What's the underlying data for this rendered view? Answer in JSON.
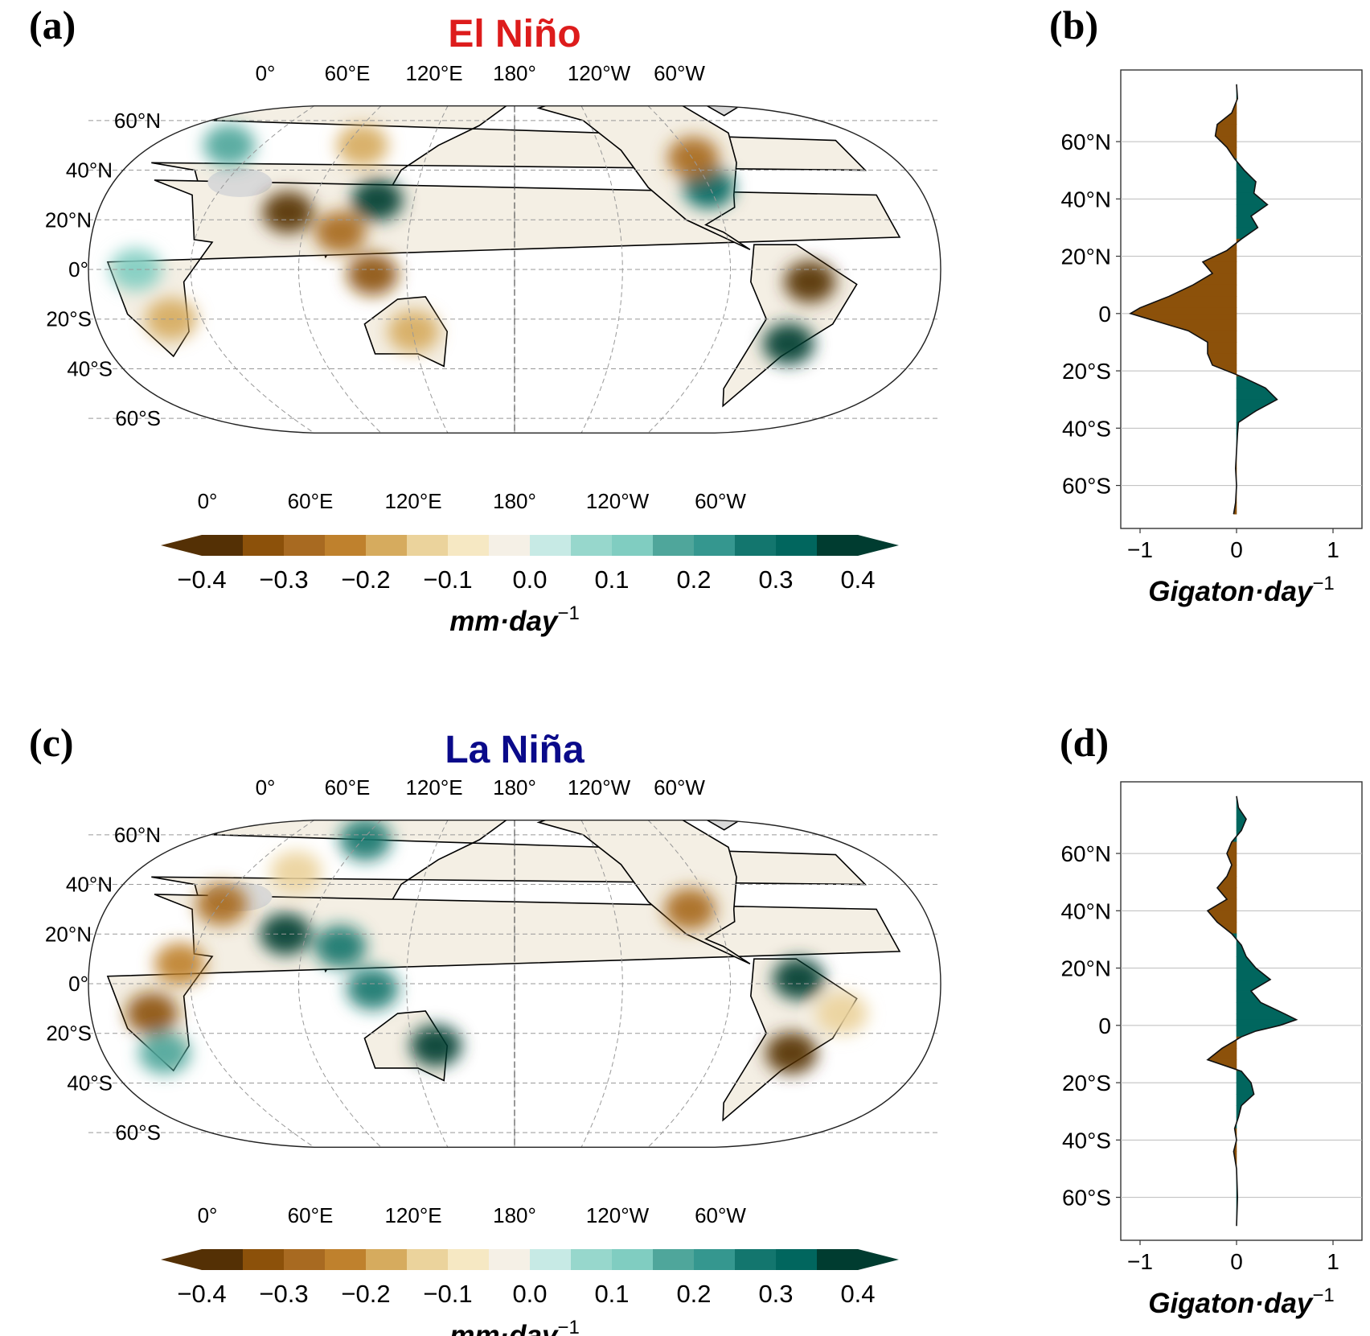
{
  "figure": {
    "colors": {
      "drying": "#8c510a",
      "wetting": "#01665e",
      "title_el_nino": "#dd1c1c",
      "title_la_nina": "#0a0a8a",
      "no_data": "#d9d9d9"
    },
    "colormap": [
      "#543005",
      "#8c510a",
      "#a86a21",
      "#bf812d",
      "#d6ab5e",
      "#ebd39c",
      "#f6e8c3",
      "#f5f0e6",
      "#e6f2f0",
      "#c7eae5",
      "#97d7cc",
      "#80cdc1",
      "#4fa69b",
      "#35978f",
      "#13766e",
      "#01665e",
      "#003c30"
    ],
    "map_lon_ticks_top": [
      "0°",
      "60°E",
      "120°E",
      "180°",
      "120°W",
      "60°W"
    ],
    "map_lon_ticks_bottom": [
      "0°",
      "60°E",
      "120°E",
      "180°",
      "120°W",
      "60°W"
    ],
    "map_lat_ticks": [
      "60°N",
      "40°N",
      "20°N",
      "0°",
      "20°S",
      "40°S",
      "60°S"
    ],
    "colorbar_ticks": [
      "−0.4",
      "−0.3",
      "−0.2",
      "−0.1",
      "0.0",
      "0.1",
      "0.2",
      "0.3",
      "0.4"
    ],
    "colorbar_unit_base": "mm·day",
    "colorbar_unit_exp": "−1",
    "profile_lat_ticks": [
      "60°N",
      "40°N",
      "20°N",
      "0",
      "20°S",
      "40°S",
      "60°S"
    ],
    "profile_x_ticks": [
      "−1",
      "0",
      "1"
    ],
    "profile_unit_base": "Gigaton·day",
    "profile_unit_exp": "−1",
    "panels": [
      {
        "letter": "(a)",
        "title": "El Niño"
      },
      {
        "letter": "(b)"
      },
      {
        "letter": "(c)",
        "title": "La Niña"
      },
      {
        "letter": "(d)"
      }
    ]
  },
  "chart_data": [
    {
      "type": "heatmap",
      "panel": "(a)",
      "title": "El Niño",
      "projection": "Robinson, central longitude 180°",
      "colorbar": {
        "min": -0.4,
        "max": 0.4,
        "step": 0.05,
        "label": "mm·day−1"
      },
      "regions": [
        {
          "lon": 80,
          "lat": 23,
          "value": -0.4
        },
        {
          "lon": 118,
          "lat": 28,
          "value": 0.4
        },
        {
          "lon": 105,
          "lat": 15,
          "value": -0.3
        },
        {
          "lon": 120,
          "lat": -2,
          "value": -0.35
        },
        {
          "lon": 135,
          "lat": -25,
          "value": -0.2
        },
        {
          "lon": 100,
          "lat": 50,
          "value": -0.2
        },
        {
          "lon": 30,
          "lat": 50,
          "value": 0.2
        },
        {
          "lon": 30,
          "lat": -20,
          "value": -0.2
        },
        {
          "lon": 20,
          "lat": 0,
          "value": 0.15
        },
        {
          "lon": -90,
          "lat": 33,
          "value": 0.35
        },
        {
          "lon": -90,
          "lat": 45,
          "value": -0.3
        },
        {
          "lon": -55,
          "lat": -5,
          "value": -0.4
        },
        {
          "lon": -55,
          "lat": -30,
          "value": 0.4
        }
      ]
    },
    {
      "type": "area",
      "panel": "(b)",
      "orientation": "horizontal",
      "xlabel": "Gigaton·day−1",
      "xlim": [
        -1.2,
        1.3
      ],
      "ylim": [
        -75,
        85
      ],
      "y": [
        80,
        75,
        70,
        66,
        62,
        58,
        54,
        50,
        46,
        42,
        38,
        34,
        30,
        26,
        22,
        18,
        14,
        10,
        6,
        2,
        0,
        -2,
        -6,
        -10,
        -14,
        -18,
        -20,
        -22,
        -26,
        -30,
        -34,
        -38,
        -42,
        -48,
        -54,
        -60,
        -66,
        -70
      ],
      "x": [
        0,
        0.01,
        -0.05,
        -0.2,
        -0.22,
        -0.1,
        -0.02,
        0.08,
        0.2,
        0.18,
        0.32,
        0.15,
        0.22,
        0.05,
        -0.1,
        -0.35,
        -0.25,
        -0.45,
        -0.7,
        -1.0,
        -1.1,
        -0.9,
        -0.5,
        -0.3,
        -0.3,
        -0.25,
        -0.1,
        0.05,
        0.3,
        0.42,
        0.2,
        0.02,
        0.01,
        0.0,
        -0.01,
        0.0,
        -0.01,
        -0.03
      ]
    },
    {
      "type": "heatmap",
      "panel": "(c)",
      "title": "La Niña",
      "projection": "Robinson, central longitude 180°",
      "colorbar": {
        "min": -0.4,
        "max": 0.4,
        "step": 0.05,
        "label": "mm·day−1"
      },
      "regions": [
        {
          "lon": 80,
          "lat": 20,
          "value": 0.4
        },
        {
          "lon": 105,
          "lat": 15,
          "value": 0.3
        },
        {
          "lon": 145,
          "lat": -25,
          "value": 0.4
        },
        {
          "lon": 120,
          "lat": -2,
          "value": 0.3
        },
        {
          "lon": 95,
          "lat": 58,
          "value": 0.3
        },
        {
          "lon": 70,
          "lat": 45,
          "value": -0.15
        },
        {
          "lon": 45,
          "lat": 32,
          "value": -0.3
        },
        {
          "lon": 25,
          "lat": -12,
          "value": -0.35
        },
        {
          "lon": 22,
          "lat": -28,
          "value": 0.2
        },
        {
          "lon": 38,
          "lat": 8,
          "value": -0.25
        },
        {
          "lon": -100,
          "lat": 30,
          "value": -0.3
        },
        {
          "lon": -60,
          "lat": 2,
          "value": 0.4
        },
        {
          "lon": -55,
          "lat": -28,
          "value": -0.4
        },
        {
          "lon": -40,
          "lat": -12,
          "value": -0.15
        }
      ]
    },
    {
      "type": "area",
      "panel": "(d)",
      "orientation": "horizontal",
      "xlabel": "Gigaton·day−1",
      "xlim": [
        -1.2,
        1.3
      ],
      "ylim": [
        -75,
        85
      ],
      "y": [
        80,
        76,
        72,
        68,
        64,
        60,
        56,
        52,
        48,
        44,
        40,
        36,
        32,
        28,
        24,
        20,
        16,
        12,
        8,
        4,
        2,
        0,
        -2,
        -4,
        -8,
        -12,
        -16,
        -20,
        -24,
        -28,
        -32,
        -36,
        -40,
        -44,
        -50,
        -60,
        -70
      ],
      "x": [
        0,
        0.02,
        0.1,
        0.05,
        -0.05,
        -0.1,
        -0.05,
        -0.1,
        -0.2,
        -0.1,
        -0.3,
        -0.2,
        -0.05,
        0.05,
        0.1,
        0.2,
        0.35,
        0.15,
        0.25,
        0.5,
        0.62,
        0.45,
        0.2,
        0.05,
        -0.15,
        -0.3,
        0.05,
        0.15,
        0.18,
        0.05,
        0.02,
        -0.02,
        0.0,
        -0.03,
        0.0,
        0.01,
        0.0
      ]
    }
  ]
}
